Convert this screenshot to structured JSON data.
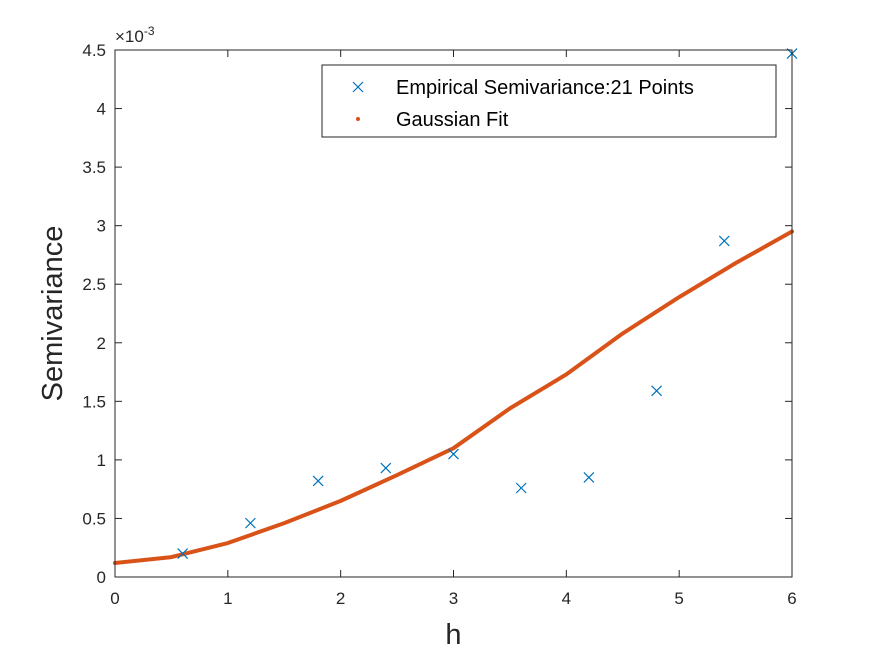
{
  "chart_data": {
    "type": "scatter",
    "xlabel": "h",
    "ylabel": "Semivariance",
    "xlim": [
      0,
      6
    ],
    "ylim": [
      0,
      0.0045
    ],
    "y_exponent_label": "×10",
    "y_exponent_power": "-3",
    "x_ticks": [
      0,
      1,
      2,
      3,
      4,
      5,
      6
    ],
    "x_tick_labels": [
      "0",
      "1",
      "2",
      "3",
      "4",
      "5",
      "6"
    ],
    "y_ticks": [
      0,
      0.0005,
      0.001,
      0.0015,
      0.002,
      0.0025,
      0.003,
      0.0035,
      0.004,
      0.0045
    ],
    "y_tick_labels": [
      "0",
      "0.5",
      "1",
      "1.5",
      "2",
      "2.5",
      "3",
      "3.5",
      "4",
      "4.5"
    ],
    "grid": false,
    "legend_position": "top-right",
    "series": [
      {
        "name": "Empirical Semivariance:21 Points",
        "style": "x-marker",
        "color": "#0072BD",
        "x": [
          0.6,
          1.2,
          1.8,
          2.4,
          3.0,
          3.6,
          4.2,
          4.8,
          5.4,
          6.0
        ],
        "y": [
          0.0002,
          0.00046,
          0.00082,
          0.00093,
          0.00105,
          0.00076,
          0.00085,
          0.00159,
          0.00287,
          0.00447
        ]
      },
      {
        "name": "Gaussian Fit",
        "style": "dot-line",
        "color": "#D95319",
        "x": [
          0,
          0.5,
          1.0,
          1.5,
          2.0,
          2.5,
          3.0,
          3.5,
          4.0,
          4.5,
          5.0,
          5.5,
          6.0
        ],
        "y": [
          0.00012,
          0.00017,
          0.00029,
          0.00046,
          0.00065,
          0.00087,
          0.0011,
          0.00144,
          0.00173,
          0.00208,
          0.00239,
          0.00268,
          0.00295
        ]
      }
    ]
  }
}
